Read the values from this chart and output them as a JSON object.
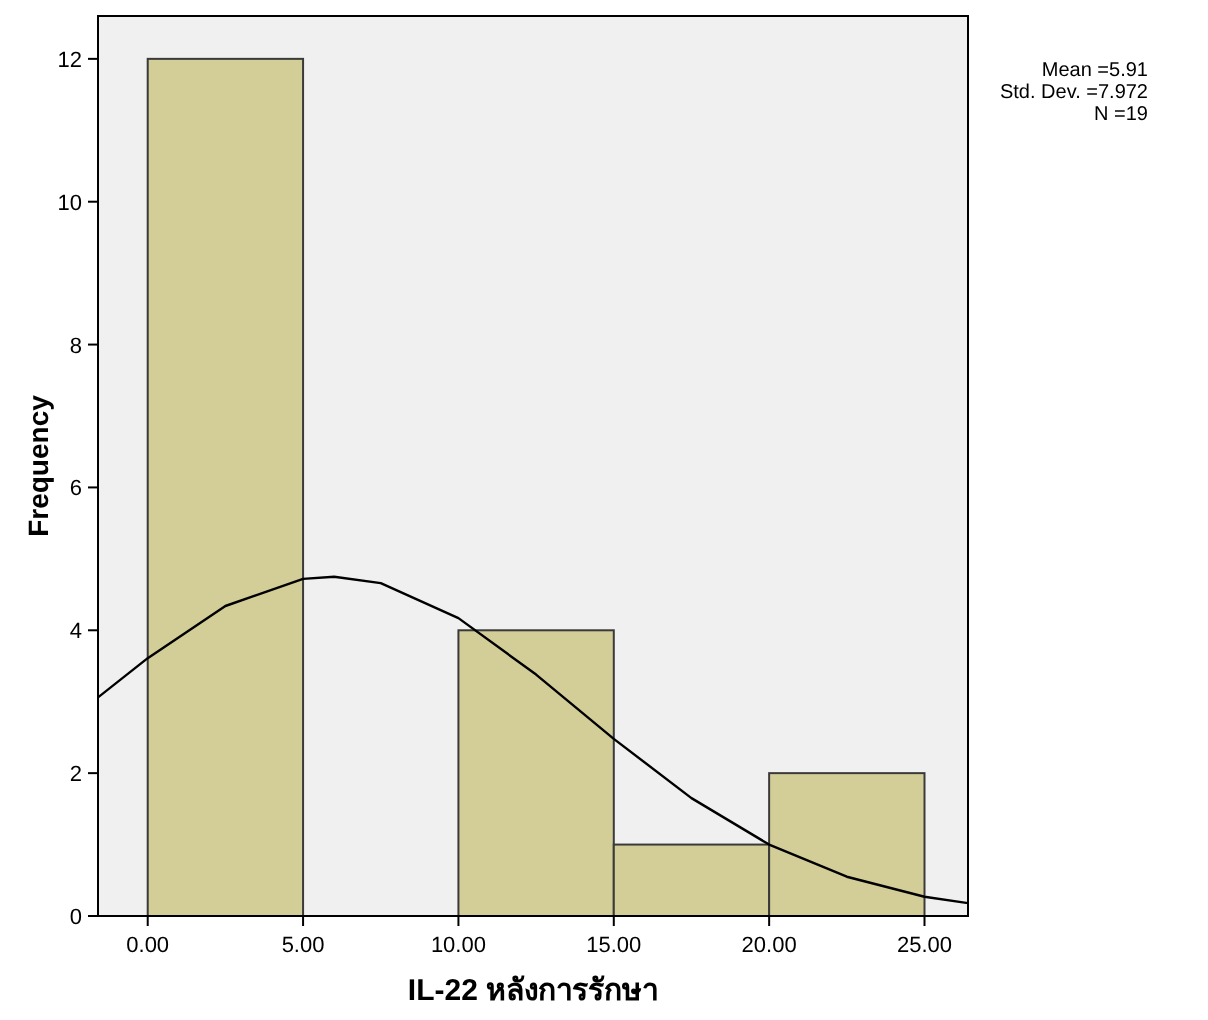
{
  "chart_data": {
    "type": "histogram",
    "xlabel": "IL-22 หลังการรักษา",
    "ylabel": "Frequency",
    "bins": [
      0,
      5,
      10,
      15,
      20,
      25
    ],
    "values": [
      12,
      0,
      4,
      1,
      2
    ],
    "color": "#d3ce98",
    "series": [
      {
        "type": "line",
        "color": "#000000",
        "x": [
          -1.6,
          0,
          2.5,
          5,
          6,
          7.5,
          10,
          12.5,
          15,
          17.5,
          20,
          22.5,
          25,
          26.4
        ],
        "values": [
          3.06,
          3.61,
          4.34,
          4.72,
          4.75,
          4.66,
          4.17,
          3.38,
          2.48,
          1.65,
          1.0,
          0.55,
          0.27,
          0.18
        ]
      }
    ],
    "xlim": [
      -1.6,
      26.4
    ],
    "ylim": [
      0,
      12.6
    ],
    "xticks": [
      {
        "value": 0,
        "label": "0.00"
      },
      {
        "value": 5,
        "label": "5.00"
      },
      {
        "value": 10,
        "label": "10.00"
      },
      {
        "value": 15,
        "label": "15.00"
      },
      {
        "value": 20,
        "label": "20.00"
      },
      {
        "value": 25,
        "label": "25.00"
      }
    ],
    "yticks": [
      0,
      2,
      4,
      6,
      8,
      10,
      12
    ],
    "annotations": [
      "Mean =5.91",
      "Std. Dev. =7.972",
      "N =19"
    ],
    "grid": false
  }
}
